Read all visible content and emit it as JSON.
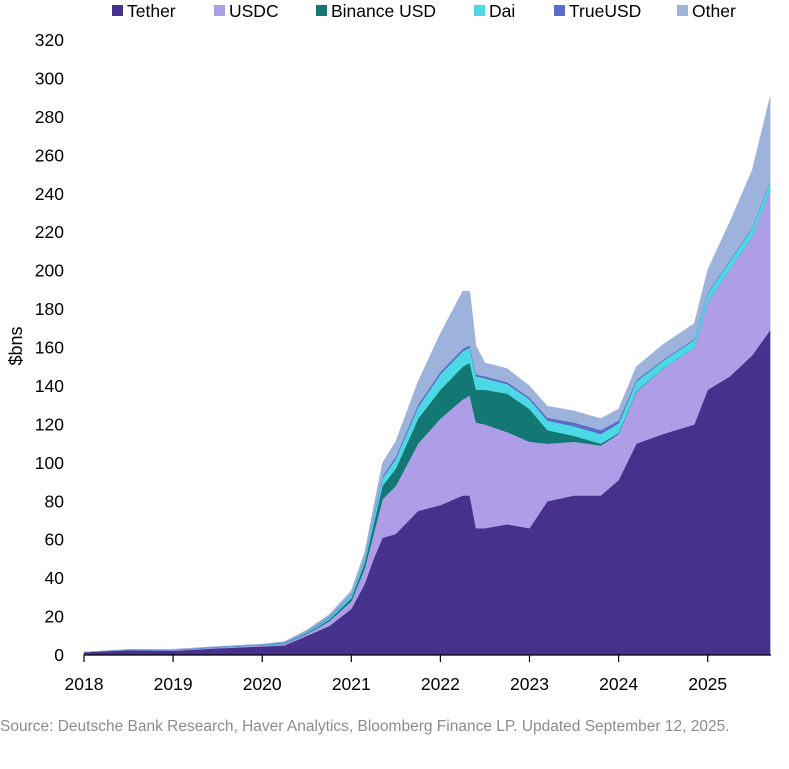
{
  "chart_data": {
    "type": "area",
    "stacked": true,
    "ylabel": "$bns",
    "xlabel": "",
    "ylim": [
      0,
      320
    ],
    "yticks": [
      0,
      20,
      40,
      60,
      80,
      100,
      120,
      140,
      160,
      180,
      200,
      220,
      240,
      260,
      280,
      300,
      320
    ],
    "xlim": [
      2018.0,
      2025.7
    ],
    "xticks": [
      "2018",
      "2019",
      "2020",
      "2021",
      "2022",
      "2023",
      "2024",
      "2025"
    ],
    "legend_position": "top",
    "x": [
      2018.0,
      2018.5,
      2019.0,
      2019.5,
      2020.0,
      2020.25,
      2020.5,
      2020.75,
      2021.0,
      2021.15,
      2021.25,
      2021.35,
      2021.5,
      2021.75,
      2022.0,
      2022.25,
      2022.33,
      2022.4,
      2022.5,
      2022.75,
      2023.0,
      2023.2,
      2023.5,
      2023.8,
      2024.0,
      2024.2,
      2024.5,
      2024.85,
      2025.0,
      2025.25,
      2025.5,
      2025.7
    ],
    "series": [
      {
        "name": "Tether",
        "color": "#46328c",
        "values": [
          1.5,
          2.5,
          2.2,
          3.5,
          4.5,
          5,
          10,
          15,
          24,
          37,
          50,
          61,
          63,
          75,
          78,
          83,
          83,
          66,
          66,
          68,
          66,
          80,
          83,
          83,
          91,
          110,
          115,
          120,
          138,
          145,
          156,
          169
        ]
      },
      {
        "name": "USDC",
        "color": "#ae9ee8",
        "values": [
          0,
          0.2,
          0.3,
          0.5,
          0.5,
          0.8,
          1,
          2.5,
          4,
          8,
          13,
          20,
          25,
          35,
          45,
          50,
          52,
          55,
          54,
          48,
          45,
          30,
          28,
          26,
          24,
          27,
          34,
          40,
          46,
          56,
          62,
          73
        ]
      },
      {
        "name": "Binance USD",
        "color": "#137874",
        "values": [
          0,
          0,
          0,
          0,
          0,
          0.2,
          0.4,
          0.8,
          1.5,
          3,
          5,
          7,
          9,
          13,
          15,
          17,
          17,
          17,
          18,
          20,
          17,
          7,
          3,
          1,
          0.5,
          0.3,
          0.1,
          0,
          0,
          0,
          0,
          0
        ]
      },
      {
        "name": "Dai",
        "color": "#4cd8e4",
        "values": [
          0,
          0,
          0,
          0.1,
          0.2,
          0.3,
          0.5,
          1,
          1.5,
          2,
          3,
          4,
          5,
          6,
          8,
          8,
          8,
          7,
          6,
          5,
          5,
          5,
          5,
          5,
          5,
          5,
          4,
          4,
          4,
          4,
          4,
          4
        ]
      },
      {
        "name": "TrueUSD",
        "color": "#5a6cc6",
        "values": [
          0,
          0.1,
          0.2,
          0.2,
          0.2,
          0.3,
          0.3,
          0.5,
          0.5,
          0.5,
          1,
          1,
          1.2,
          1.3,
          1.3,
          1.3,
          1.2,
          1,
          1,
          1,
          1,
          1.5,
          2,
          2,
          1.5,
          0.8,
          0.5,
          0.5,
          0.5,
          0.5,
          0.5,
          0.5
        ]
      },
      {
        "name": "Other",
        "color": "#9eb3dc",
        "values": [
          0,
          0.2,
          0.3,
          0.2,
          0.3,
          0.4,
          0.8,
          1.2,
          2,
          3,
          5,
          7,
          8,
          12,
          20,
          30,
          28,
          15,
          7,
          7,
          6,
          6,
          6,
          6,
          6,
          7,
          8,
          8,
          12,
          20,
          30,
          44
        ]
      }
    ]
  },
  "source_note": "Source: Deutsche Bank Research, Haver Analytics,  Bloomberg Finance LP. Updated September 12, 2025."
}
